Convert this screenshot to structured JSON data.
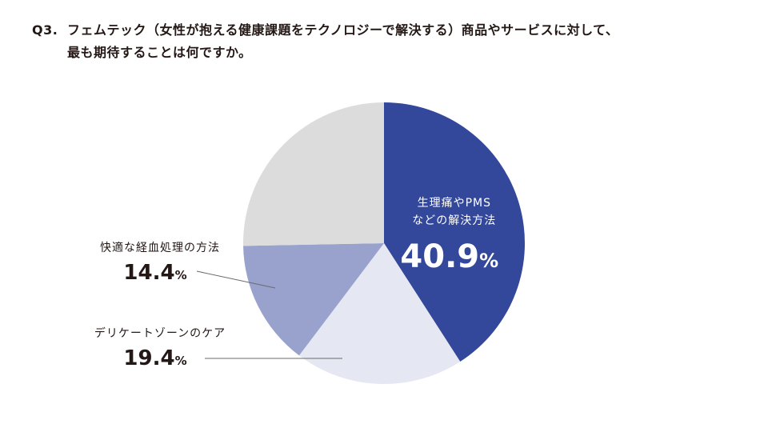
{
  "title": {
    "number": "Q3.",
    "line1": "フェムテック（女性が抱える健康課題をテクノロジーで解決する）商品やサービスに対して、",
    "line2": "最も期待することは何ですか。"
  },
  "chart_data": {
    "type": "pie",
    "start": "12 o'clock",
    "direction": "clockwise",
    "slices": [
      {
        "label_lines": [
          "生理痛やPMS",
          "などの解決方法"
        ],
        "value": 40.9,
        "display": "40.9",
        "unit": "%",
        "color": "#33479b",
        "label_placement": "inside"
      },
      {
        "label_lines": [
          "デリケートゾーンのケア"
        ],
        "value": 19.4,
        "display": "19.4",
        "unit": "%",
        "color": "#e5e7f2",
        "label_placement": "outside-left"
      },
      {
        "label_lines": [
          "快適な経血処理の方法"
        ],
        "value": 14.4,
        "display": "14.4",
        "unit": "%",
        "color": "#98a2cd",
        "label_placement": "outside-left"
      },
      {
        "label_lines": [
          ""
        ],
        "value": 25.3,
        "display": "",
        "unit": "",
        "color": "#dcdcdc",
        "label_placement": "none"
      }
    ]
  }
}
